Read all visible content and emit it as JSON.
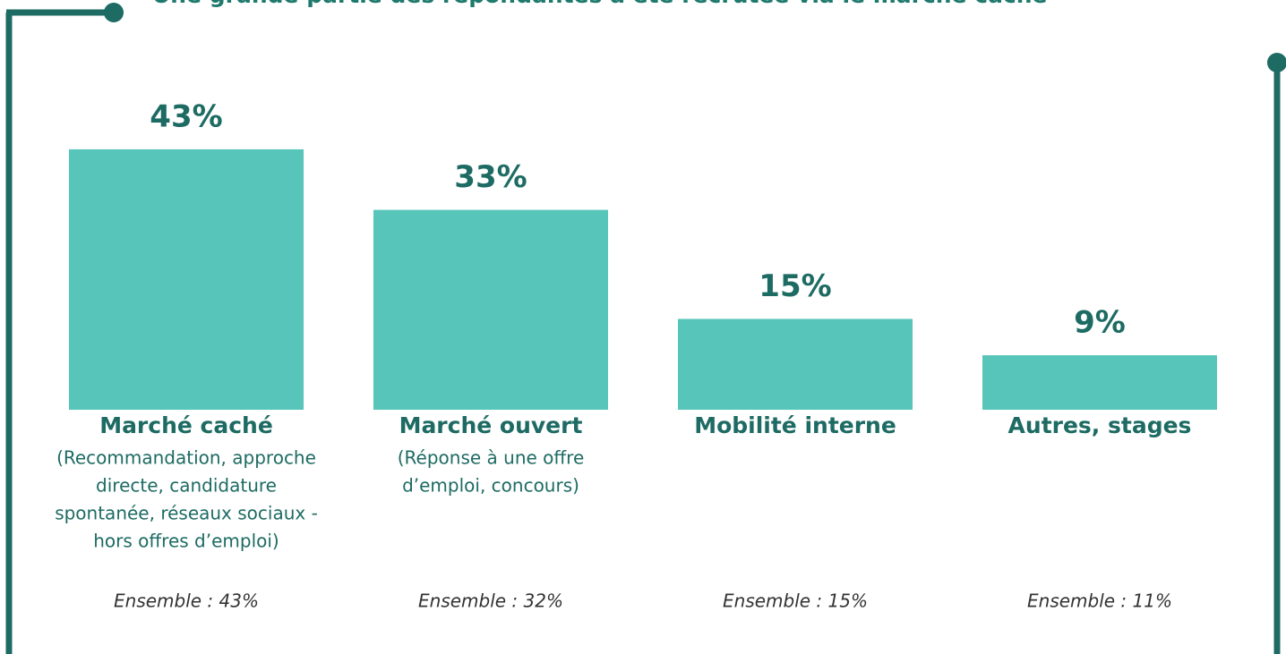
{
  "chart_data": {
    "type": "bar",
    "title": "Une grande partie des répondantes a été recrutée via le marché caché",
    "categories": [
      "Marché caché",
      "Marché ouvert",
      "Mobilité interne",
      "Autres, stages"
    ],
    "descriptions": [
      [
        "(Recommandation, approche",
        "directe, candidature",
        "spontanée, réseaux sociaux -",
        "hors offres d’emploi)"
      ],
      [
        "(Réponse à une offre",
        "d’emploi, concours)"
      ],
      [],
      []
    ],
    "values": [
      43,
      33,
      15,
      9
    ],
    "value_labels": [
      "43%",
      "33%",
      "15%",
      "9%"
    ],
    "notes": [
      "Ensemble : 43%",
      "Ensemble : 32%",
      "Ensemble : 15%",
      "Ensemble : 11%"
    ],
    "color": "#57c5b9"
  }
}
